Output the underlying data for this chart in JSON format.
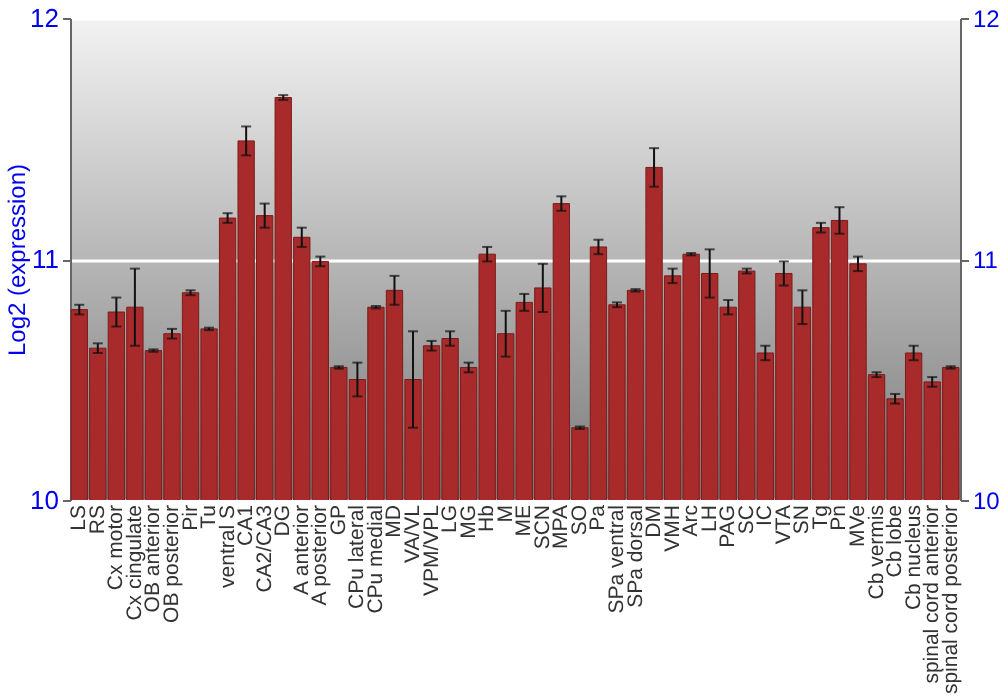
{
  "chart_data": {
    "type": "bar",
    "ylabel": "Log2 (expression)",
    "categories": [
      "LS",
      "RS",
      "Cx motor",
      "Cx cingulate",
      "OB anterior",
      "OB posterior",
      "Pir",
      "Tu",
      "ventral S",
      "CA1",
      "CA2/CA3",
      "DG",
      "A anterior",
      "A posterior",
      "GP",
      "CPu lateral",
      "CPu medial",
      "MD",
      "VA/VL",
      "VPM/VPL",
      "LG",
      "MG",
      "Hb",
      "M",
      "ME",
      "SCN",
      "MPA",
      "SO",
      "Pa",
      "SPa ventral",
      "SPa dorsal",
      "DM",
      "VMH",
      "Arc",
      "LH",
      "PAG",
      "SC",
      "IC",
      "VTA",
      "SN",
      "Tg",
      "Pn",
      "MVe",
      "Cb vermis",
      "Cb lobe",
      "Cb nucleus",
      "spinal cord anterior",
      "spinal cord posterior"
    ],
    "values": [
      10.79,
      10.63,
      10.78,
      10.8,
      10.62,
      10.69,
      10.86,
      10.71,
      11.17,
      11.49,
      11.18,
      11.67,
      11.09,
      10.99,
      10.55,
      10.5,
      10.8,
      10.87,
      10.5,
      10.64,
      10.67,
      10.55,
      11.02,
      10.69,
      10.82,
      10.88,
      11.23,
      10.3,
      11.05,
      10.81,
      10.87,
      11.38,
      10.93,
      11.02,
      10.94,
      10.8,
      10.95,
      10.61,
      10.94,
      10.8,
      11.13,
      11.16,
      10.98,
      10.52,
      10.42,
      10.61,
      10.49,
      10.55
    ],
    "errors": [
      0.02,
      0.02,
      0.06,
      0.16,
      0.005,
      0.02,
      0.01,
      0.005,
      0.02,
      0.06,
      0.05,
      0.01,
      0.04,
      0.02,
      0.005,
      0.07,
      0.005,
      0.06,
      0.2,
      0.02,
      0.03,
      0.02,
      0.03,
      0.095,
      0.035,
      0.1,
      0.03,
      0.005,
      0.03,
      0.01,
      0.005,
      0.08,
      0.03,
      0.005,
      0.1,
      0.03,
      0.01,
      0.03,
      0.05,
      0.07,
      0.02,
      0.055,
      0.03,
      0.01,
      0.02,
      0.03,
      0.02,
      0.005
    ],
    "color": "#a82a2a",
    "ylim": [
      10,
      12
    ],
    "yticks": [
      10,
      11,
      12
    ],
    "y2lim": [
      10,
      12
    ],
    "y2ticks": [
      10,
      11,
      12
    ],
    "grid": "y"
  }
}
